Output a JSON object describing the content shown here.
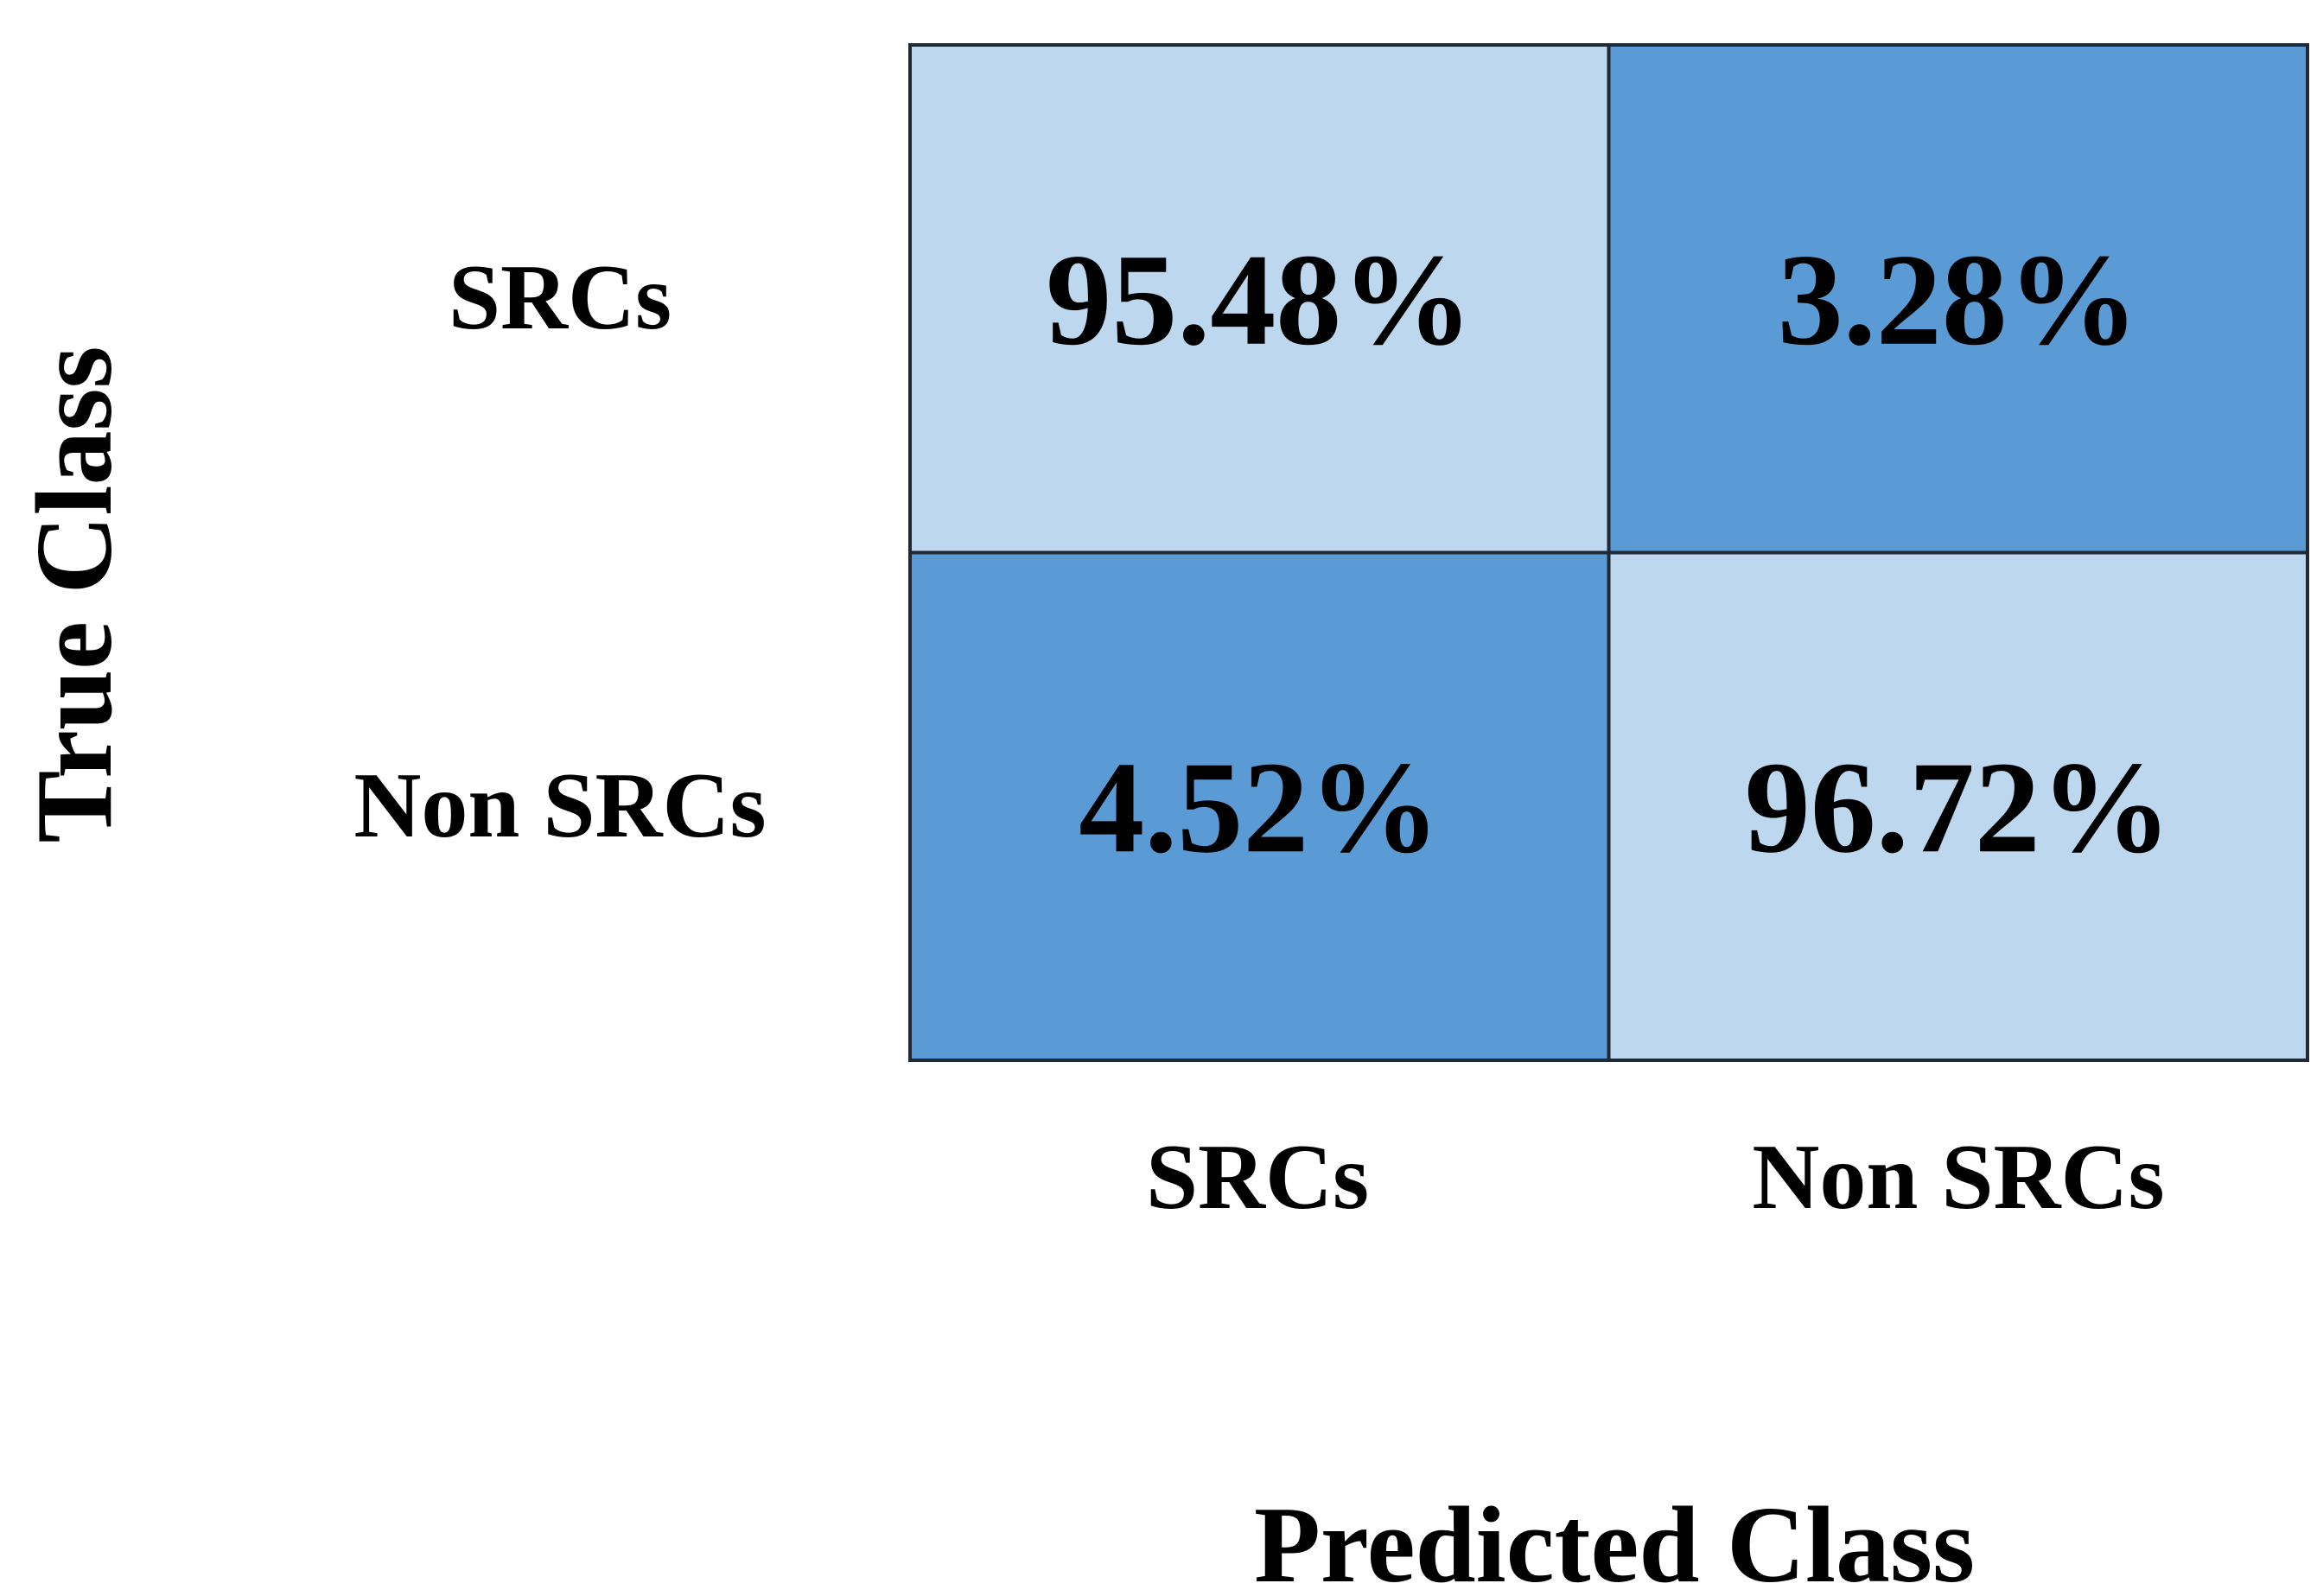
{
  "chart_data": {
    "type": "heatmap",
    "title": "",
    "xlabel": "Predicted Class",
    "ylabel": "True Class",
    "x_categories": [
      "SRCs",
      "Non SRCs"
    ],
    "y_categories": [
      "SRCs",
      "Non SRCs"
    ],
    "values": [
      [
        95.48,
        3.28
      ],
      [
        4.52,
        96.72
      ]
    ],
    "value_labels": [
      [
        "95.48%",
        "3.28%"
      ],
      [
        "4.52%",
        "96.72%"
      ]
    ],
    "unit": "%",
    "colors": {
      "high": "#BDD7EE",
      "low": "#5B9BD5",
      "border": "#1F2A36",
      "text": "#000000"
    },
    "legend": "none",
    "grid": false
  }
}
